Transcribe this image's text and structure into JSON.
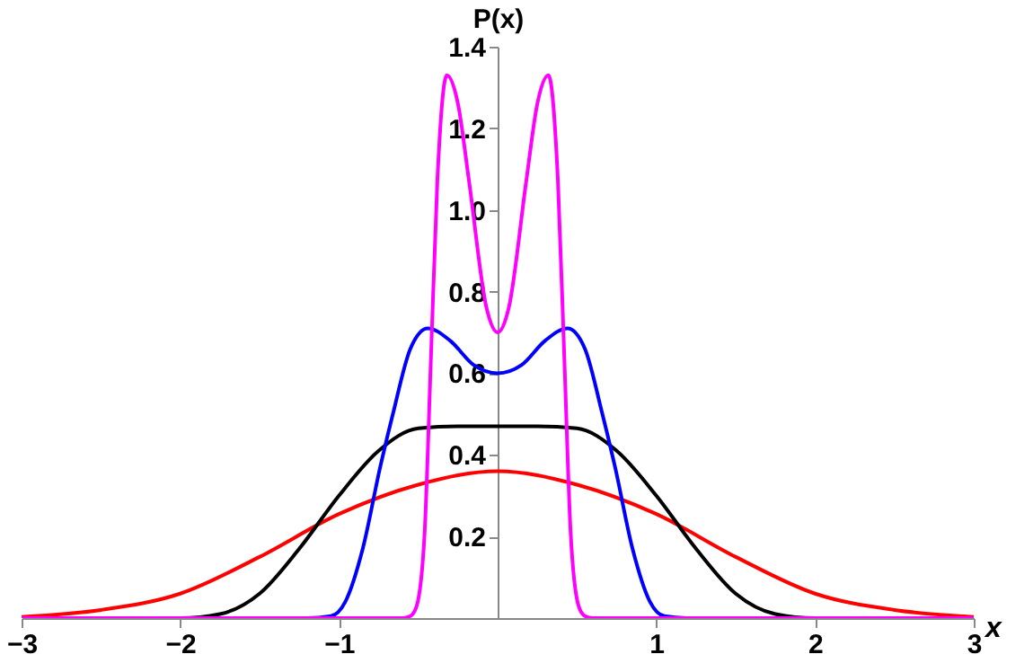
{
  "chart_data": {
    "type": "line",
    "xlabel": "x",
    "ylabel": "P(x)",
    "xlim": [
      -3,
      3
    ],
    "ylim": [
      0,
      1.4
    ],
    "xticks": [
      -3,
      -2,
      -1,
      1,
      2,
      3
    ],
    "yticks": [
      0.2,
      0.4,
      0.6,
      0.8,
      {
        "value": 1,
        "label": "1.0"
      },
      1.2,
      1.4
    ],
    "grid": false,
    "legend": false,
    "marker": "none",
    "line_style": "solid",
    "series": [
      {
        "color": "#ff0000",
        "x": [
          -3,
          -2.5,
          -2,
          -1.5,
          -1,
          -0.5,
          0,
          0.5,
          1,
          1.5,
          2,
          2.5,
          3
        ],
        "values": [
          0.003,
          0.02,
          0.06,
          0.15,
          0.255,
          0.327,
          0.36,
          0.327,
          0.255,
          0.15,
          0.06,
          0.02,
          0.003
        ]
      },
      {
        "color": "#000000",
        "x": [
          -3,
          -2,
          -1.75,
          -1.5,
          -1.25,
          -1,
          -0.75,
          -0.5,
          -0.25,
          0,
          0.25,
          0.5,
          0.75,
          1,
          1.25,
          1.5,
          1.75,
          2,
          3
        ],
        "values": [
          0,
          0,
          0.01,
          0.06,
          0.17,
          0.3,
          0.41,
          0.465,
          0.47,
          0.47,
          0.47,
          0.465,
          0.41,
          0.3,
          0.17,
          0.06,
          0.01,
          0,
          0
        ]
      },
      {
        "color": "#0000ff",
        "x": [
          -3,
          -1.2,
          -1.05,
          -0.96,
          -0.85,
          -0.74,
          -0.66,
          -0.55,
          -0.44,
          -0.3,
          -0.15,
          0,
          0.15,
          0.3,
          0.44,
          0.55,
          0.66,
          0.74,
          0.85,
          0.96,
          1.05,
          1.2,
          3
        ],
        "values": [
          0,
          0,
          0.005,
          0.04,
          0.17,
          0.37,
          0.5,
          0.66,
          0.71,
          0.68,
          0.62,
          0.6,
          0.62,
          0.68,
          0.71,
          0.66,
          0.5,
          0.37,
          0.17,
          0.04,
          0.005,
          0,
          0
        ]
      },
      {
        "color": "#ff00ff",
        "x": [
          -3,
          -0.6,
          -0.55,
          -0.51,
          -0.46,
          -0.42,
          -0.38,
          -0.32,
          -0.25,
          -0.18,
          -0.07,
          0,
          0.07,
          0.18,
          0.25,
          0.32,
          0.38,
          0.42,
          0.46,
          0.51,
          0.55,
          0.6,
          3
        ],
        "values": [
          0,
          0,
          0.005,
          0.03,
          0.21,
          0.64,
          1.07,
          1.33,
          1.26,
          1.07,
          0.76,
          0.7,
          0.76,
          1.07,
          1.26,
          1.33,
          1.07,
          0.64,
          0.21,
          0.03,
          0.005,
          0,
          0
        ]
      }
    ]
  }
}
